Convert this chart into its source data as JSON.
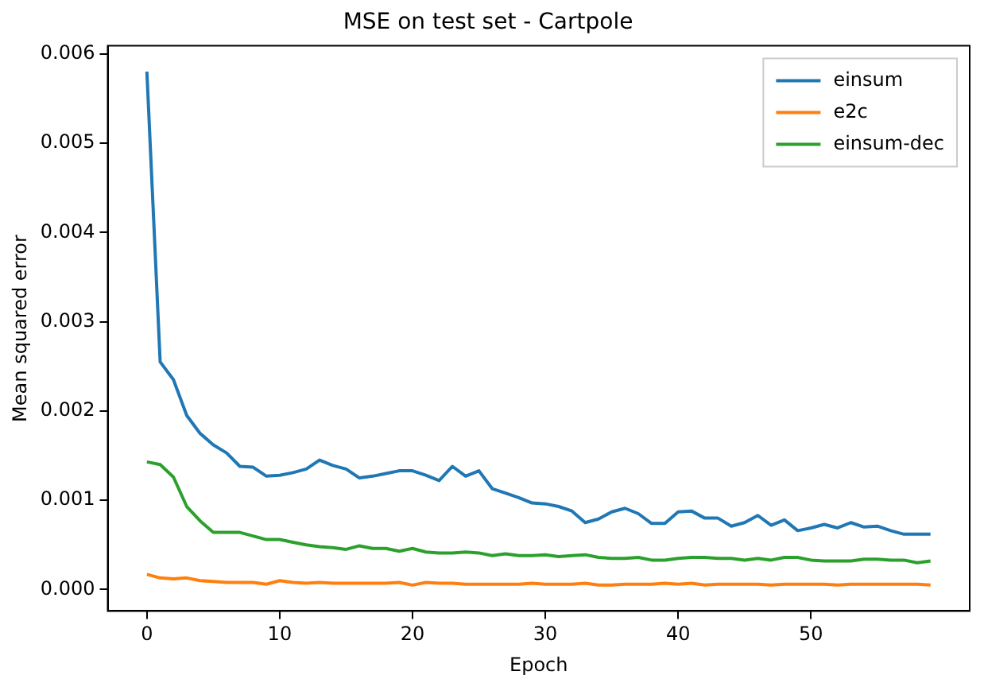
{
  "chart_data": {
    "type": "line",
    "title": "MSE on test set - Cartpole",
    "xlabel": "Epoch",
    "ylabel": "Mean squared error",
    "x": [
      0,
      1,
      2,
      3,
      4,
      5,
      6,
      7,
      8,
      9,
      10,
      11,
      12,
      13,
      14,
      15,
      16,
      17,
      18,
      19,
      20,
      21,
      22,
      23,
      24,
      25,
      26,
      27,
      28,
      29,
      30,
      31,
      32,
      33,
      34,
      35,
      36,
      37,
      38,
      39,
      40,
      41,
      42,
      43,
      44,
      45,
      46,
      47,
      48,
      49,
      50,
      51,
      52,
      53,
      54,
      55,
      56,
      57,
      58,
      59
    ],
    "series": [
      {
        "name": "einsum",
        "color": "#1f77b4",
        "values": [
          0.0058,
          0.00255,
          0.00235,
          0.00195,
          0.00175,
          0.00162,
          0.00153,
          0.00138,
          0.00137,
          0.00127,
          0.00128,
          0.00131,
          0.00135,
          0.00145,
          0.00139,
          0.00135,
          0.00125,
          0.00127,
          0.0013,
          0.00133,
          0.00133,
          0.00128,
          0.00122,
          0.00138,
          0.00127,
          0.00133,
          0.00113,
          0.00108,
          0.00103,
          0.00097,
          0.00096,
          0.00093,
          0.00088,
          0.00075,
          0.00079,
          0.00087,
          0.00091,
          0.00085,
          0.00074,
          0.00074,
          0.00087,
          0.00088,
          0.0008,
          0.0008,
          0.00071,
          0.00075,
          0.00083,
          0.00072,
          0.00078,
          0.00066,
          0.00069,
          0.00073,
          0.00069,
          0.00075,
          0.0007,
          0.00071,
          0.00066,
          0.00062,
          0.00062,
          0.00062
        ]
      },
      {
        "name": "e2c",
        "color": "#ff7f0e",
        "values": [
          0.00017,
          0.00013,
          0.00012,
          0.00013,
          0.0001,
          9e-05,
          8e-05,
          8e-05,
          8e-05,
          6e-05,
          0.0001,
          8e-05,
          7e-05,
          8e-05,
          7e-05,
          7e-05,
          7e-05,
          7e-05,
          7e-05,
          8e-05,
          5e-05,
          8e-05,
          7e-05,
          7e-05,
          6e-05,
          6e-05,
          6e-05,
          6e-05,
          6e-05,
          7e-05,
          6e-05,
          6e-05,
          6e-05,
          7e-05,
          5e-05,
          5e-05,
          6e-05,
          6e-05,
          6e-05,
          7e-05,
          6e-05,
          7e-05,
          5e-05,
          6e-05,
          6e-05,
          6e-05,
          6e-05,
          5e-05,
          6e-05,
          6e-05,
          6e-05,
          6e-05,
          5e-05,
          6e-05,
          6e-05,
          6e-05,
          6e-05,
          6e-05,
          6e-05,
          5e-05
        ]
      },
      {
        "name": "einsum-dec",
        "color": "#2ca02c",
        "values": [
          0.00143,
          0.0014,
          0.00126,
          0.00093,
          0.00077,
          0.00064,
          0.00064,
          0.00064,
          0.0006,
          0.00056,
          0.00056,
          0.00053,
          0.0005,
          0.00048,
          0.00047,
          0.00045,
          0.00049,
          0.00046,
          0.00046,
          0.00043,
          0.00046,
          0.00042,
          0.00041,
          0.00041,
          0.00042,
          0.00041,
          0.00038,
          0.0004,
          0.00038,
          0.00038,
          0.00039,
          0.00037,
          0.00038,
          0.00039,
          0.00036,
          0.00035,
          0.00035,
          0.00036,
          0.00033,
          0.00033,
          0.00035,
          0.00036,
          0.00036,
          0.00035,
          0.00035,
          0.00033,
          0.00035,
          0.00033,
          0.00036,
          0.00036,
          0.00033,
          0.00032,
          0.00032,
          0.00032,
          0.00034,
          0.00034,
          0.00033,
          0.00033,
          0.0003,
          0.00032
        ]
      }
    ],
    "xlim": [
      -2.95,
      61.95
    ],
    "xticks": [
      0,
      10,
      20,
      30,
      40,
      50
    ],
    "ylim": [
      -0.00024,
      0.00609
    ],
    "yticks": [
      {
        "value": 0,
        "label": "0.000"
      },
      {
        "value": 0.001,
        "label": "0.001"
      },
      {
        "value": 0.002,
        "label": "0.002"
      },
      {
        "value": 0.003,
        "label": "0.003"
      },
      {
        "value": 0.004,
        "label": "0.004"
      },
      {
        "value": 0.005,
        "label": "0.005"
      },
      {
        "value": 0.006,
        "label": "0.006"
      }
    ],
    "grid": false,
    "legend": "top right",
    "marker": "none",
    "line_style": "solid"
  }
}
